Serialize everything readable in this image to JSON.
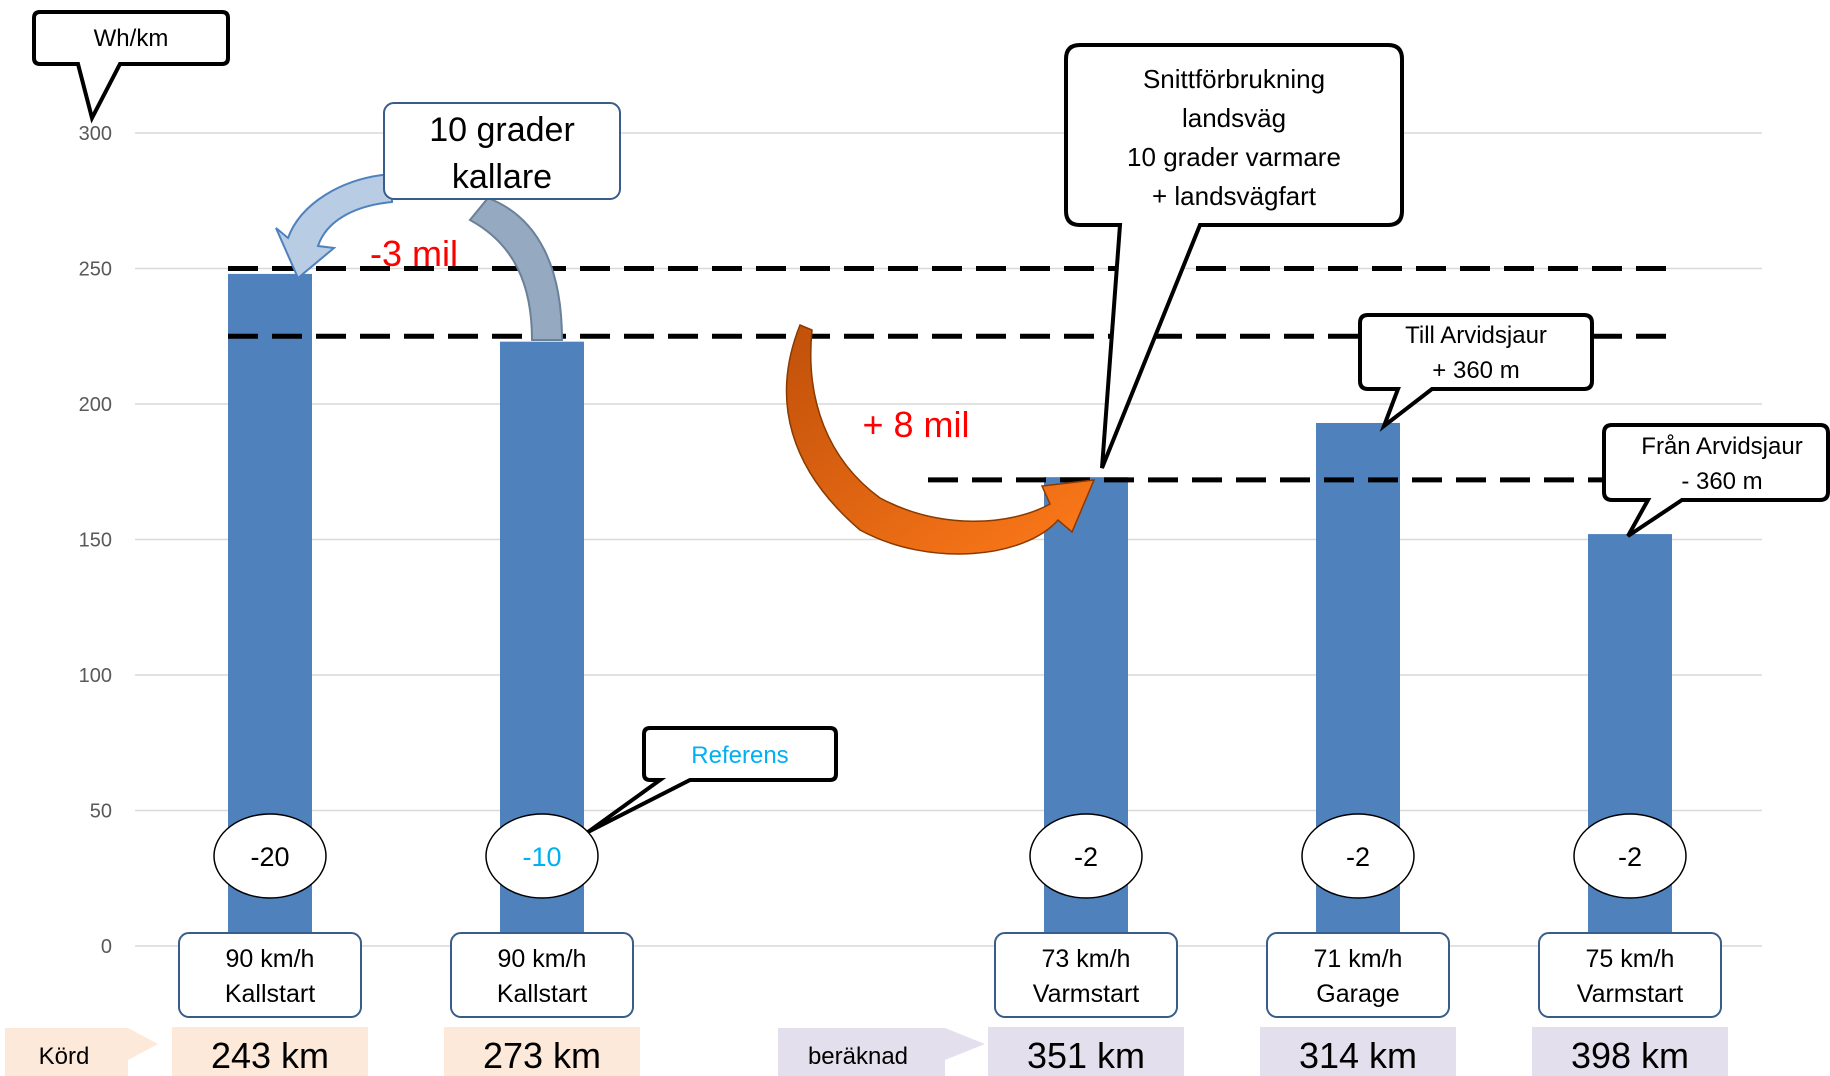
{
  "chart_data": {
    "type": "bar",
    "ylabel": "Wh/km",
    "ylim": [
      0,
      300
    ],
    "yticks": [
      0,
      50,
      100,
      150,
      200,
      250,
      300
    ],
    "grid": true,
    "bar_color": "#4f81bd",
    "categories": [
      "90 km/h Kallstart",
      "90 km/h Kallstart",
      "73 km/h Varmstart",
      "71 km/h Garage",
      "75 km/h Varmstart"
    ],
    "bars": [
      {
        "slot": 0,
        "speed": "90 km/h",
        "start": "Kallstart",
        "value": 248,
        "temp": "-20",
        "range": "243 km"
      },
      {
        "slot": 1,
        "speed": "90 km/h",
        "start": "Kallstart",
        "value": 223,
        "temp": "-10",
        "range": "273 km"
      },
      {
        "slot": 3,
        "speed": "73 km/h",
        "start": "Varmstart",
        "value": 173,
        "temp": "-2",
        "range": "351 km"
      },
      {
        "slot": 4,
        "speed": "71 km/h",
        "start": "Garage",
        "value": 193,
        "temp": "-2",
        "range": "314 km"
      },
      {
        "slot": 5,
        "speed": "75 km/h",
        "start": "Varmstart",
        "value": 152,
        "temp": "-2",
        "range": "398 km"
      }
    ],
    "reference_lines": [
      250,
      225,
      172
    ],
    "row_labels": {
      "driven": "Körd",
      "calculated": "beräknad"
    },
    "annotations": {
      "cold": "10 grader kallare",
      "cold_lines": [
        "10 grader",
        "kallare"
      ],
      "minus": "-3 mil",
      "plus": "+ 8 mil",
      "average_lines": [
        "Snittförbrukning",
        "landsväg",
        "10 grader varmare",
        "+  landsvägfart"
      ],
      "reference": "Referens",
      "to_lines": [
        "Till Arvidsjaur",
        "+ 360 m"
      ],
      "from_lines": [
        "Från Arvidsjaur",
        "- 360 m"
      ]
    },
    "colors": {
      "minus": "#ff0000",
      "reference": "#00b0f0",
      "driven_bg": "#fde9d9",
      "calc_bg": "#e4dfec",
      "orange_arrow": "#e36c09",
      "blue_arrow": "#b8cce4"
    }
  }
}
